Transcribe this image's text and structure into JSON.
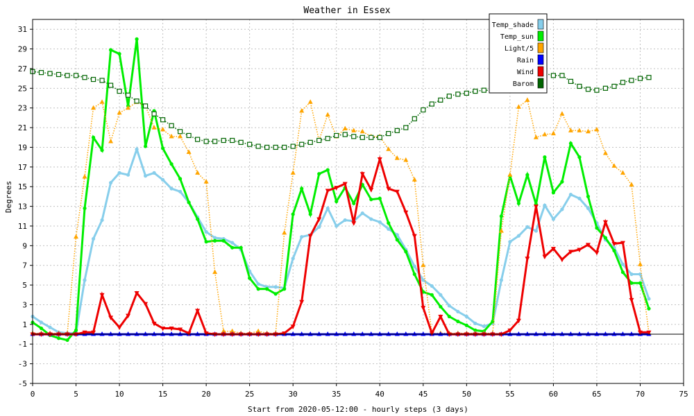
{
  "chart_data": {
    "type": "line",
    "title": "Weather in Essex",
    "xlabel": "Start from 2020-05-12:00 - hourly steps (3 days)",
    "ylabel": "Degrees",
    "xlim": [
      0,
      75
    ],
    "ylim": [
      -5,
      32
    ],
    "x_ticks": [
      "0",
      "5",
      "10",
      "15",
      "20",
      "25",
      "30",
      "35",
      "40",
      "45",
      "50",
      "55",
      "60",
      "65",
      "70",
      "75"
    ],
    "y_ticks": [
      "-5",
      "-3",
      "-1",
      "1",
      "3",
      "5",
      "7",
      "9",
      "11",
      "13",
      "15",
      "17",
      "19",
      "21",
      "23",
      "25",
      "27",
      "29",
      "31"
    ],
    "grid": true,
    "legend_position": "top-right",
    "series": [
      {
        "name": "Temp_shade",
        "color": "#87ceeb",
        "marker": "dot",
        "line": "solid",
        "values": [
          1.8,
          1.2,
          0.7,
          0.2,
          0.1,
          0.1,
          5.5,
          9.7,
          11.6,
          15.4,
          16.4,
          16.2,
          18.8,
          16.1,
          16.4,
          15.7,
          14.8,
          14.5,
          13.4,
          11.9,
          10.4,
          9.8,
          9.7,
          9.3,
          8.6,
          6.4,
          5.1,
          4.8,
          4.8,
          4.7,
          7.7,
          9.9,
          10.1,
          10.9,
          12.8,
          11.0,
          11.6,
          11.5,
          12.3,
          11.7,
          11.4,
          10.7,
          10.1,
          8.6,
          6.9,
          5.5,
          4.9,
          4.0,
          2.9,
          2.3,
          1.8,
          1.1,
          0.8,
          1.1,
          5.5,
          9.4,
          10.0,
          10.9,
          10.5,
          13.1,
          11.7,
          12.7,
          14.2,
          13.8,
          12.8,
          11.3,
          9.6,
          8.8,
          7.1,
          6.1,
          6.1,
          3.6
        ]
      },
      {
        "name": "Temp_sun",
        "color": "#00ee00",
        "marker": "dot",
        "line": "solid",
        "values": [
          1.2,
          0.6,
          -0.1,
          -0.4,
          -0.6,
          0.4,
          12.8,
          20.0,
          18.7,
          28.9,
          28.5,
          23.2,
          30.0,
          19.1,
          22.7,
          18.9,
          17.3,
          15.8,
          13.4,
          11.7,
          9.4,
          9.5,
          9.5,
          8.8,
          8.8,
          5.7,
          4.6,
          4.6,
          4.1,
          4.6,
          12.2,
          14.8,
          12.2,
          16.3,
          16.7,
          13.5,
          14.9,
          13.3,
          15.2,
          13.7,
          13.8,
          11.3,
          9.6,
          8.4,
          6.1,
          4.3,
          4.0,
          2.8,
          1.8,
          1.3,
          0.9,
          0.4,
          0.3,
          1.3,
          12.0,
          16.1,
          13.3,
          16.2,
          13.2,
          18.0,
          14.4,
          15.5,
          19.4,
          18.0,
          14.0,
          10.8,
          9.8,
          8.5,
          6.3,
          5.2,
          5.2,
          2.6
        ]
      },
      {
        "name": "Light/5",
        "color": "#ffa500",
        "marker": "triangle-up",
        "line": "dotted",
        "values": [
          0.1,
          0.1,
          0.1,
          0.1,
          0.1,
          9.9,
          16.0,
          23.0,
          23.6,
          19.6,
          22.5,
          23.0,
          23.6,
          23.2,
          21.0,
          20.8,
          20.1,
          20.1,
          18.5,
          16.4,
          15.5,
          6.3,
          0.3,
          0.3,
          0.1,
          0.1,
          0.3,
          0.1,
          0.1,
          10.3,
          16.4,
          22.7,
          23.6,
          19.7,
          22.3,
          20.1,
          20.9,
          20.7,
          20.6,
          20.1,
          20.1,
          18.8,
          17.9,
          17.7,
          15.7,
          7.0,
          0.1,
          0.1,
          0.1,
          0.1,
          0.1,
          0.1,
          0.1,
          0.1,
          10.5,
          16.2,
          23.1,
          23.8,
          20.0,
          20.3,
          20.4,
          22.4,
          20.7,
          20.7,
          20.6,
          20.8,
          18.4,
          17.1,
          16.4,
          15.2,
          7.1,
          0.1
        ]
      },
      {
        "name": "Rain",
        "color": "#0000ff",
        "marker": "triangle-up",
        "line": "solid",
        "values": [
          0,
          0,
          0,
          0,
          0,
          0,
          0,
          0,
          0,
          0,
          0,
          0,
          0,
          0,
          0,
          0,
          0,
          0,
          0,
          0,
          0,
          0,
          0,
          0,
          0,
          0,
          0,
          0,
          0,
          0,
          0,
          0,
          0,
          0,
          0,
          0,
          0,
          0,
          0,
          0,
          0,
          0,
          0,
          0,
          0,
          0,
          0,
          0,
          0,
          0,
          0,
          0,
          0,
          0,
          0,
          0,
          0,
          0,
          0,
          0,
          0,
          0,
          0,
          0,
          0,
          0,
          0,
          0,
          0,
          0,
          0,
          0
        ]
      },
      {
        "name": "Wind",
        "color": "#ee0000",
        "marker": "triangle-down",
        "line": "solid",
        "values": [
          0,
          0,
          0,
          0,
          0,
          0,
          0.2,
          0.2,
          4.0,
          1.7,
          0.7,
          1.9,
          4.2,
          3.1,
          1.1,
          0.6,
          0.6,
          0.5,
          0.1,
          2.4,
          0.1,
          0,
          0,
          0,
          0,
          0,
          0,
          0,
          0,
          0.1,
          0.8,
          3.3,
          10.0,
          11.7,
          14.6,
          14.9,
          15.3,
          11.3,
          16.3,
          14.7,
          17.8,
          14.8,
          14.5,
          12.4,
          10.0,
          2.7,
          0.1,
          1.8,
          0,
          0,
          0,
          0,
          0,
          0,
          0,
          0.4,
          1.4,
          7.7,
          13.0,
          7.9,
          8.7,
          7.6,
          8.4,
          8.6,
          9.1,
          8.3,
          11.4,
          9.2,
          9.3,
          3.5,
          0.2,
          0.2
        ]
      },
      {
        "name": "Barom",
        "color": "#006400",
        "marker": "square",
        "line": "dotted",
        "values": [
          26.7,
          26.6,
          26.5,
          26.4,
          26.3,
          26.3,
          26.1,
          25.9,
          25.8,
          25.3,
          24.7,
          24.3,
          23.7,
          23.2,
          22.4,
          21.8,
          21.2,
          20.6,
          20.2,
          19.8,
          19.6,
          19.6,
          19.7,
          19.7,
          19.5,
          19.3,
          19.1,
          19.0,
          19.0,
          19.0,
          19.1,
          19.3,
          19.5,
          19.7,
          19.9,
          20.2,
          20.3,
          20.1,
          20.0,
          20.0,
          20.0,
          20.4,
          20.7,
          21.0,
          21.9,
          22.8,
          23.4,
          23.8,
          24.2,
          24.4,
          24.5,
          24.7,
          24.8,
          24.8,
          25.1,
          25.5,
          26.1,
          26.4,
          26.5,
          26.5,
          26.3,
          26.3,
          25.7,
          25.2,
          24.9,
          24.8,
          25.0,
          25.2,
          25.6,
          25.8,
          26.0,
          26.1
        ]
      }
    ]
  }
}
